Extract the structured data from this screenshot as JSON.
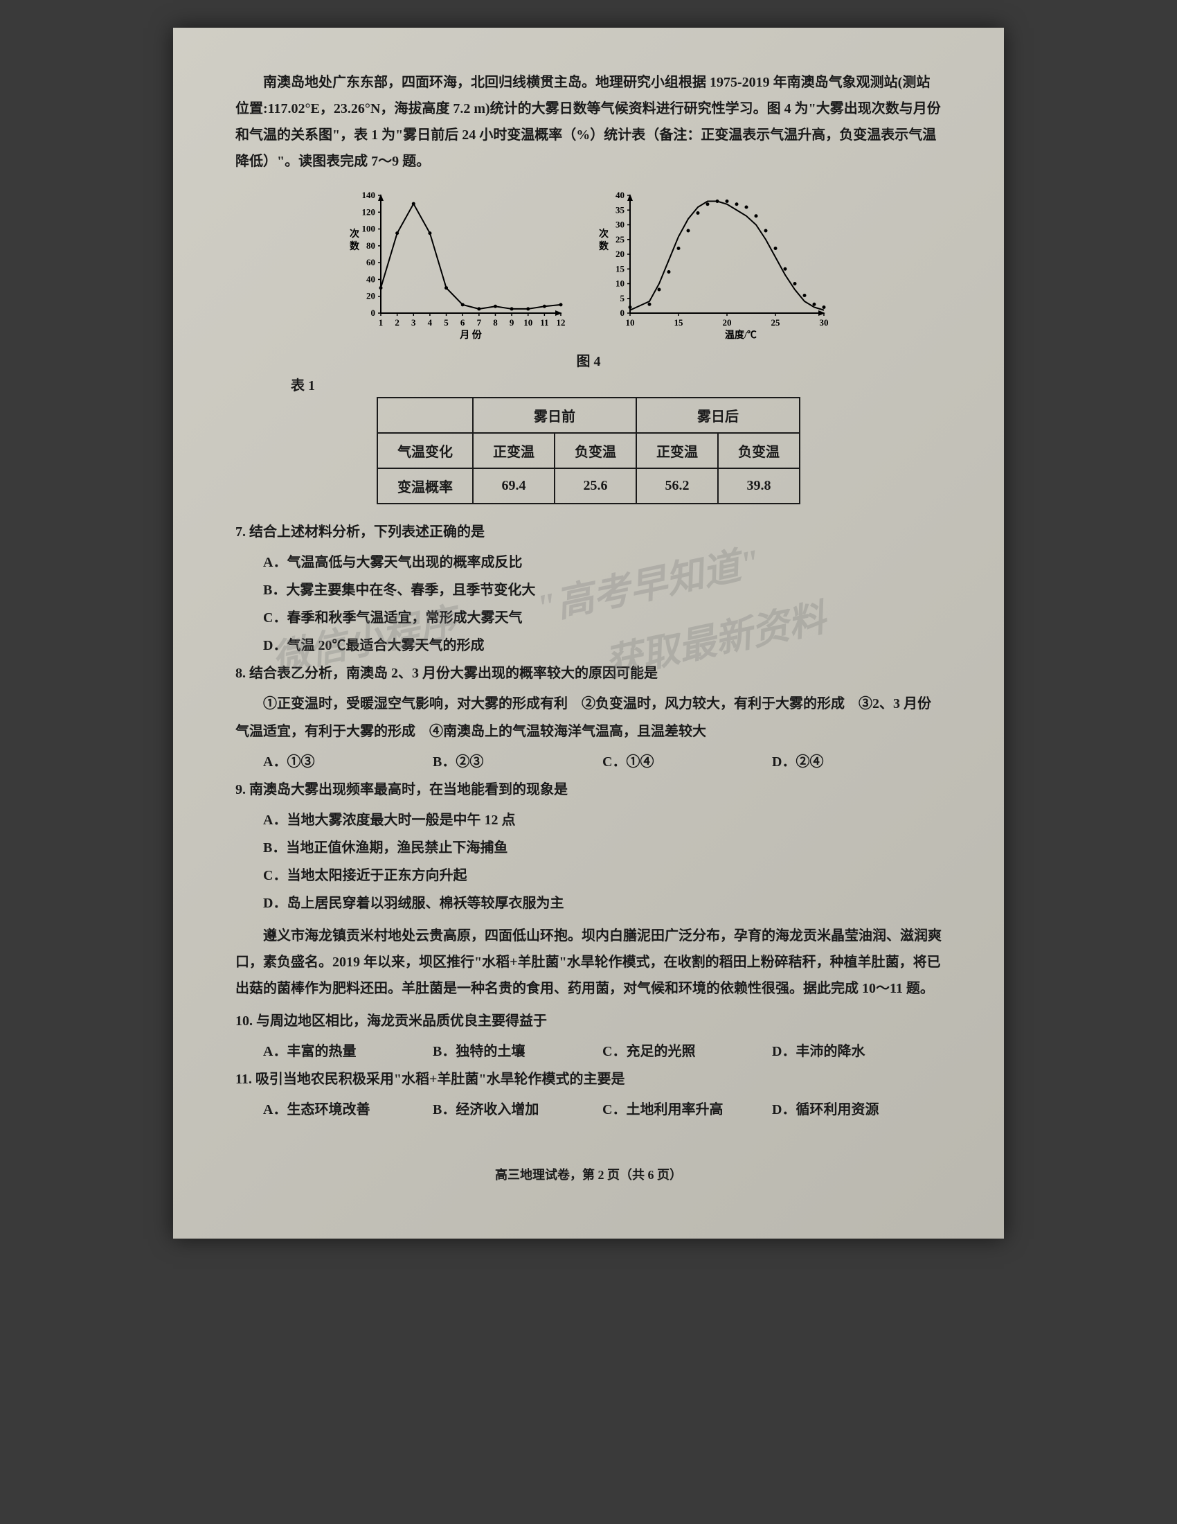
{
  "intro": "南澳岛地处广东东部，四面环海，北回归线横贯主岛。地理研究小组根据 1975-2019 年南澳岛气象观测站(测站位置:117.02°E，23.26°N，海拔高度 7.2 m)统计的大雾日数等气候资料进行研究性学习。图 4 为\"大雾出现次数与月份和气温的关系图\"，表 1 为\"雾日前后 24 小时变温概率（%）统计表（备注：正变温表示气温升高，负变温表示气温降低）\"。读图表完成 7～9 题。",
  "chart1": {
    "type": "line",
    "x_label": "月 份",
    "y_label": "次数",
    "x_values": [
      1,
      2,
      3,
      4,
      5,
      6,
      7,
      8,
      9,
      10,
      11,
      12
    ],
    "y_values": [
      30,
      95,
      130,
      95,
      30,
      10,
      5,
      8,
      5,
      5,
      8,
      10
    ],
    "ylim": [
      0,
      140
    ],
    "yticks": [
      0,
      20,
      40,
      60,
      80,
      100,
      120,
      140
    ],
    "xlim": [
      1,
      12
    ],
    "line_color": "#000000",
    "background_color": "#c8c6bd",
    "line_width": 2,
    "marker": "dot"
  },
  "chart2": {
    "type": "scatter-line",
    "x_label": "温度/℃",
    "y_label": "次数",
    "x_values": [
      10,
      12,
      13,
      14,
      15,
      16,
      17,
      18,
      19,
      20,
      21,
      22,
      23,
      24,
      25,
      26,
      27,
      28,
      29,
      30
    ],
    "scatter_y": [
      2,
      3,
      8,
      14,
      22,
      28,
      34,
      37,
      38,
      38,
      37,
      36,
      33,
      28,
      22,
      15,
      10,
      6,
      3,
      2
    ],
    "curve_y": [
      1,
      4,
      10,
      18,
      26,
      32,
      36,
      38,
      38,
      37,
      35,
      33,
      30,
      25,
      19,
      13,
      8,
      4,
      2,
      1
    ],
    "ylim": [
      0,
      40
    ],
    "yticks": [
      0,
      5,
      10,
      15,
      20,
      25,
      30,
      35,
      40
    ],
    "xticks": [
      10,
      15,
      20,
      25,
      30
    ],
    "line_color": "#000000",
    "background_color": "#c8c6bd",
    "line_width": 2
  },
  "figure_caption": "图 4",
  "table_label": "表 1",
  "table": {
    "headers_top": [
      "",
      "雾日前",
      "雾日后"
    ],
    "row1": [
      "气温变化",
      "正变温",
      "负变温",
      "正变温",
      "负变温"
    ],
    "row2": [
      "变温概率",
      "69.4",
      "25.6",
      "56.2",
      "39.8"
    ]
  },
  "q7": {
    "stem": "7. 结合上述材料分析，下列表述正确的是",
    "A": "A．气温高低与大雾天气出现的概率成反比",
    "B": "B．大雾主要集中在冬、春季，且季节变化大",
    "C": "C．春季和秋季气温适宜，常形成大雾天气",
    "D": "D．气温 20℃最适合大雾天气的形成"
  },
  "q8": {
    "stem": "8. 结合表乙分析，南澳岛 2、3 月份大雾出现的概率较大的原因可能是",
    "body": "①正变温时，受暖湿空气影响，对大雾的形成有利　②负变温时，风力较大，有利于大雾的形成　③2、3 月份气温适宜，有利于大雾的形成　④南澳岛上的气温较海洋气温高，且温差较大",
    "A": "A．①③",
    "B": "B．②③",
    "C": "C．①④",
    "D": "D．②④"
  },
  "q9": {
    "stem": "9. 南澳岛大雾出现频率最高时，在当地能看到的现象是",
    "A": "A．当地大雾浓度最大时一般是中午 12 点",
    "B": "B．当地正值休渔期，渔民禁止下海捕鱼",
    "C": "C．当地太阳接近于正东方向升起",
    "D": "D．岛上居民穿着以羽绒服、棉袄等较厚衣服为主"
  },
  "passage2": "遵义市海龙镇贡米村地处云贵高原，四面低山环抱。坝内白膳泥田广泛分布，孕育的海龙贡米晶莹油润、滋润爽口，素负盛名。2019 年以来，坝区推行\"水稻+羊肚菌\"水旱轮作模式，在收割的稻田上粉碎秸秆，种植羊肚菌，将已出菇的菌棒作为肥料还田。羊肚菌是一种名贵的食用、药用菌，对气候和环境的依赖性很强。据此完成 10～11 题。",
  "q10": {
    "stem": "10. 与周边地区相比，海龙贡米品质优良主要得益于",
    "A": "A．丰富的热量",
    "B": "B．独特的土壤",
    "C": "C．充足的光照",
    "D": "D．丰沛的降水"
  },
  "q11": {
    "stem": "11. 吸引当地农民积极采用\"水稻+羊肚菌\"水旱轮作模式的主要是",
    "A": "A．生态环境改善",
    "B": "B．经济收入增加",
    "C": "C．土地利用率升高",
    "D": "D．循环利用资源"
  },
  "footer": "高三地理试卷，第 2 页（共 6 页）",
  "watermark1": "\"高考早知道\"",
  "watermark2a": "微信小程序",
  "watermark2b": "获取最新资料"
}
